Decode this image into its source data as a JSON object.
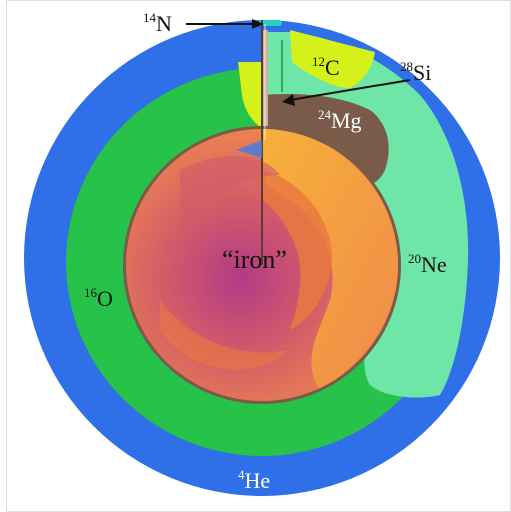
{
  "diagram": {
    "labels": {
      "he4": {
        "mass": "4",
        "symbol": "He"
      },
      "o16": {
        "mass": "16",
        "symbol": "O"
      },
      "ne20": {
        "mass": "20",
        "symbol": "Ne"
      },
      "mg24": {
        "mass": "24",
        "symbol": "Mg"
      },
      "si28": {
        "mass": "28",
        "symbol": "Si"
      },
      "c12": {
        "mass": "12",
        "symbol": "C"
      },
      "n14": {
        "mass": "14",
        "symbol": "N"
      },
      "iron": {
        "text": "“iron”"
      }
    },
    "colors": {
      "background": "#ffffff",
      "helium": "#2f6fe8",
      "oxygen": "#27c24a",
      "neon": "#6ee6a8",
      "magnesium": "#7a5a48",
      "carbon": "#d4f21a",
      "silicon": "#c9b39a",
      "iron_core_outer": "#f08a4b",
      "iron_core_inner": "#c0407a",
      "iron_core_warm": "#f5a93a",
      "nitrogen": "#22d3c5",
      "border": "#dddddd"
    }
  }
}
